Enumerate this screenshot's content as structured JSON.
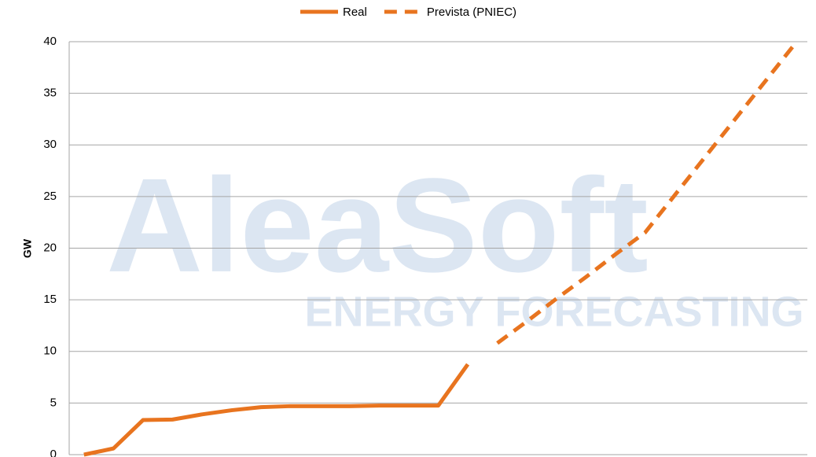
{
  "chart_data": {
    "type": "line",
    "watermark": {
      "title": "AleaSoft",
      "subtitle": "ENERGY FORECASTING"
    },
    "y_label": "GW",
    "categories": [
      null,
      null,
      null,
      null,
      null,
      null,
      null,
      null,
      null,
      null,
      null,
      null,
      null,
      null,
      null,
      null,
      null,
      null,
      null,
      null,
      null,
      null,
      null,
      null,
      null
    ],
    "series": [
      {
        "name": "Real",
        "color": "#e8741f",
        "style": "solid",
        "values": [
          0,
          0.6,
          3.35,
          3.4,
          3.9,
          4.3,
          4.6,
          4.7,
          4.7,
          4.7,
          4.75,
          4.75,
          4.75,
          8.75,
          null,
          null,
          null,
          null,
          null,
          null,
          null,
          null,
          null,
          null,
          null
        ]
      },
      {
        "name": "Prevista (PNIEC)",
        "color": "#e8741f",
        "style": "dashed",
        "values": [
          null,
          null,
          null,
          null,
          null,
          null,
          null,
          null,
          null,
          null,
          null,
          null,
          null,
          null,
          10.8,
          12.9,
          15.1,
          17.2,
          19.4,
          21.5,
          25.1,
          28.7,
          32.3,
          35.9,
          39.5
        ]
      }
    ],
    "ylim": [
      0,
      40
    ],
    "yticks": [
      0,
      5,
      10,
      15,
      20,
      25,
      30,
      35,
      40
    ],
    "grid": true,
    "legend": "top"
  }
}
